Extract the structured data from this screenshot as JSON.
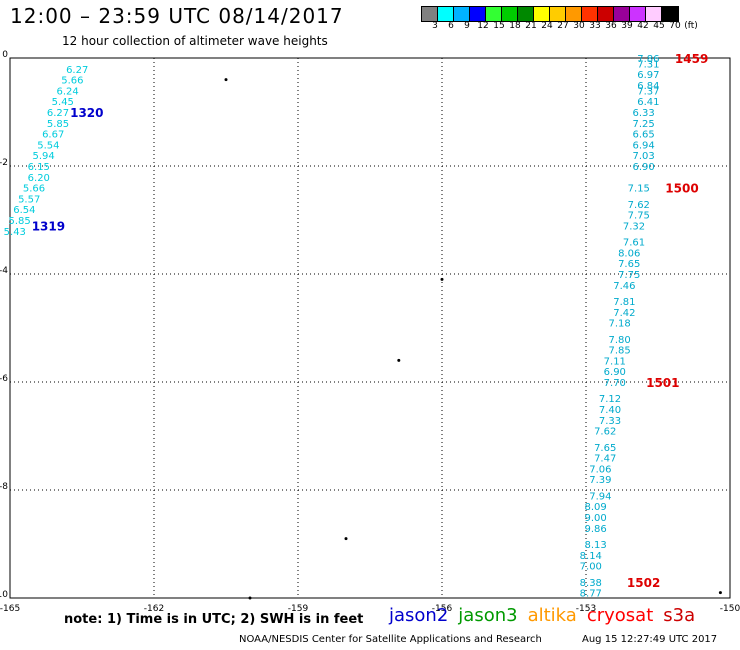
{
  "title": "12:00 – 23:59 UTC 08/14/2017",
  "subtitle": "12 hour collection of altimeter wave heights",
  "colorbar": {
    "colors": [
      "#808080",
      "#00ffff",
      "#00b2ff",
      "#0000ff",
      "#33ff33",
      "#00cc00",
      "#008800",
      "#ffff00",
      "#ffcc00",
      "#ff9900",
      "#ff3300",
      "#cc0000",
      "#990099",
      "#cc33ff",
      "#ffccff",
      "#000000"
    ],
    "labels": [
      "3",
      "6",
      "9",
      "12",
      "15",
      "18",
      "21",
      "24",
      "27",
      "30",
      "33",
      "36",
      "39",
      "42",
      "45",
      "70",
      "(ft)"
    ]
  },
  "note": "note:  1) Time is in UTC;  2) SWH is in feet",
  "legend": [
    {
      "label": "jason2",
      "color": "#0000cc"
    },
    {
      "label": "jason3",
      "color": "#009900"
    },
    {
      "label": "altika",
      "color": "#ff9900"
    },
    {
      "label": "cryosat",
      "color": "#ff0000"
    },
    {
      "label": "s3a",
      "color": "#cc0000"
    }
  ],
  "footer": "NOAA/NESDIS Center for Satellite Applications and Research",
  "footer_timestamp": "Aug 15 12:27:49 UTC 2017",
  "chart_data": {
    "type": "scatter",
    "xlim": [
      -165,
      -150
    ],
    "ylim": [
      -10,
      0
    ],
    "x_ticks": [
      "-165",
      "-162",
      "-159",
      "-156",
      "-153",
      "-150"
    ],
    "y_ticks": [
      "0",
      "-2",
      "-4",
      "-6",
      "-8",
      "-10"
    ],
    "grid": true,
    "series": [
      {
        "name": "jason2",
        "label_color": "#00ccdd",
        "time_color": "#0000cc",
        "times": [
          {
            "text": "1320",
            "x": -163.4,
            "y": -1.0
          },
          {
            "text": "1319",
            "x": -164.2,
            "y": -3.1
          }
        ],
        "points": [
          {
            "x": -163.6,
            "y": -0.2,
            "v": "6.27"
          },
          {
            "x": -163.7,
            "y": -0.4,
            "v": "5.66"
          },
          {
            "x": -163.8,
            "y": -0.6,
            "v": "6.24"
          },
          {
            "x": -163.9,
            "y": -0.8,
            "v": "5.45"
          },
          {
            "x": -164.0,
            "y": -1.0,
            "v": "6.27"
          },
          {
            "x": -164.0,
            "y": -1.2,
            "v": "5.85"
          },
          {
            "x": -164.1,
            "y": -1.4,
            "v": "6.67"
          },
          {
            "x": -164.2,
            "y": -1.6,
            "v": "5.54"
          },
          {
            "x": -164.3,
            "y": -1.8,
            "v": "5.94"
          },
          {
            "x": -164.4,
            "y": -2.0,
            "v": "6.15"
          },
          {
            "x": -164.4,
            "y": -2.2,
            "v": "6.20"
          },
          {
            "x": -164.5,
            "y": -2.4,
            "v": "5.66"
          },
          {
            "x": -164.6,
            "y": -2.6,
            "v": "5.57"
          },
          {
            "x": -164.7,
            "y": -2.8,
            "v": "6.54"
          },
          {
            "x": -164.8,
            "y": -3.0,
            "v": "5.85"
          },
          {
            "x": -164.9,
            "y": -3.2,
            "v": "5.43"
          }
        ]
      },
      {
        "name": "s3a",
        "label_color": "#00aacc",
        "time_color": "#dd0000",
        "times": [
          {
            "text": "1459",
            "x": -150.8,
            "y": 0.0
          },
          {
            "text": "1500",
            "x": -151.0,
            "y": -2.4
          },
          {
            "text": "1501",
            "x": -151.4,
            "y": -6.0
          },
          {
            "text": "1502",
            "x": -151.8,
            "y": -9.7
          }
        ],
        "points": [
          {
            "x": -151.7,
            "y": 0.0,
            "v": "7.86"
          },
          {
            "x": -151.7,
            "y": -0.1,
            "v": "7.31"
          },
          {
            "x": -151.7,
            "y": -0.3,
            "v": "6.97"
          },
          {
            "x": -151.7,
            "y": -0.5,
            "v": "6.84"
          },
          {
            "x": -151.7,
            "y": -0.6,
            "v": "7.37"
          },
          {
            "x": -151.7,
            "y": -0.8,
            "v": "6.41"
          },
          {
            "x": -151.8,
            "y": -1.0,
            "v": "6.33"
          },
          {
            "x": -151.8,
            "y": -1.2,
            "v": "7.25"
          },
          {
            "x": -151.8,
            "y": -1.4,
            "v": "6.65"
          },
          {
            "x": -151.8,
            "y": -1.6,
            "v": "6.94"
          },
          {
            "x": -151.8,
            "y": -1.8,
            "v": "7.03"
          },
          {
            "x": -151.8,
            "y": -2.0,
            "v": "6.90"
          },
          {
            "x": -151.9,
            "y": -2.4,
            "v": "7.15"
          },
          {
            "x": -151.9,
            "y": -2.7,
            "v": "7.62"
          },
          {
            "x": -151.9,
            "y": -2.9,
            "v": "7.75"
          },
          {
            "x": -152.0,
            "y": -3.1,
            "v": "7.32"
          },
          {
            "x": -152.0,
            "y": -3.4,
            "v": "7.61"
          },
          {
            "x": -152.1,
            "y": -3.6,
            "v": "8.06"
          },
          {
            "x": -152.1,
            "y": -3.8,
            "v": "7.65"
          },
          {
            "x": -152.1,
            "y": -4.0,
            "v": "7.75"
          },
          {
            "x": -152.2,
            "y": -4.2,
            "v": "7.46"
          },
          {
            "x": -152.2,
            "y": -4.5,
            "v": "7.81"
          },
          {
            "x": -152.2,
            "y": -4.7,
            "v": "7.42"
          },
          {
            "x": -152.3,
            "y": -4.9,
            "v": "7.18"
          },
          {
            "x": -152.3,
            "y": -5.2,
            "v": "7.80"
          },
          {
            "x": -152.3,
            "y": -5.4,
            "v": "7.85"
          },
          {
            "x": -152.4,
            "y": -5.6,
            "v": "7.11"
          },
          {
            "x": -152.4,
            "y": -5.8,
            "v": "6.90"
          },
          {
            "x": -152.4,
            "y": -6.0,
            "v": "7.70"
          },
          {
            "x": -152.5,
            "y": -6.3,
            "v": "7.12"
          },
          {
            "x": -152.5,
            "y": -6.5,
            "v": "7.40"
          },
          {
            "x": -152.5,
            "y": -6.7,
            "v": "7.33"
          },
          {
            "x": -152.6,
            "y": -6.9,
            "v": "7.62"
          },
          {
            "x": -152.6,
            "y": -7.2,
            "v": "7.65"
          },
          {
            "x": -152.6,
            "y": -7.4,
            "v": "7.47"
          },
          {
            "x": -152.7,
            "y": -7.6,
            "v": "7.06"
          },
          {
            "x": -152.7,
            "y": -7.8,
            "v": "7.39"
          },
          {
            "x": -152.7,
            "y": -8.1,
            "v": "7.94"
          },
          {
            "x": -152.8,
            "y": -8.3,
            "v": "8.09"
          },
          {
            "x": -152.8,
            "y": -8.5,
            "v": "9.00"
          },
          {
            "x": -152.8,
            "y": -8.7,
            "v": "9.86"
          },
          {
            "x": -152.8,
            "y": -9.0,
            "v": "8.13"
          },
          {
            "x": -152.9,
            "y": -9.2,
            "v": "8.14"
          },
          {
            "x": -152.9,
            "y": -9.4,
            "v": "7.00"
          },
          {
            "x": -152.9,
            "y": -9.7,
            "v": "8.38"
          },
          {
            "x": -152.9,
            "y": -9.9,
            "v": "8.77"
          }
        ]
      }
    ]
  }
}
